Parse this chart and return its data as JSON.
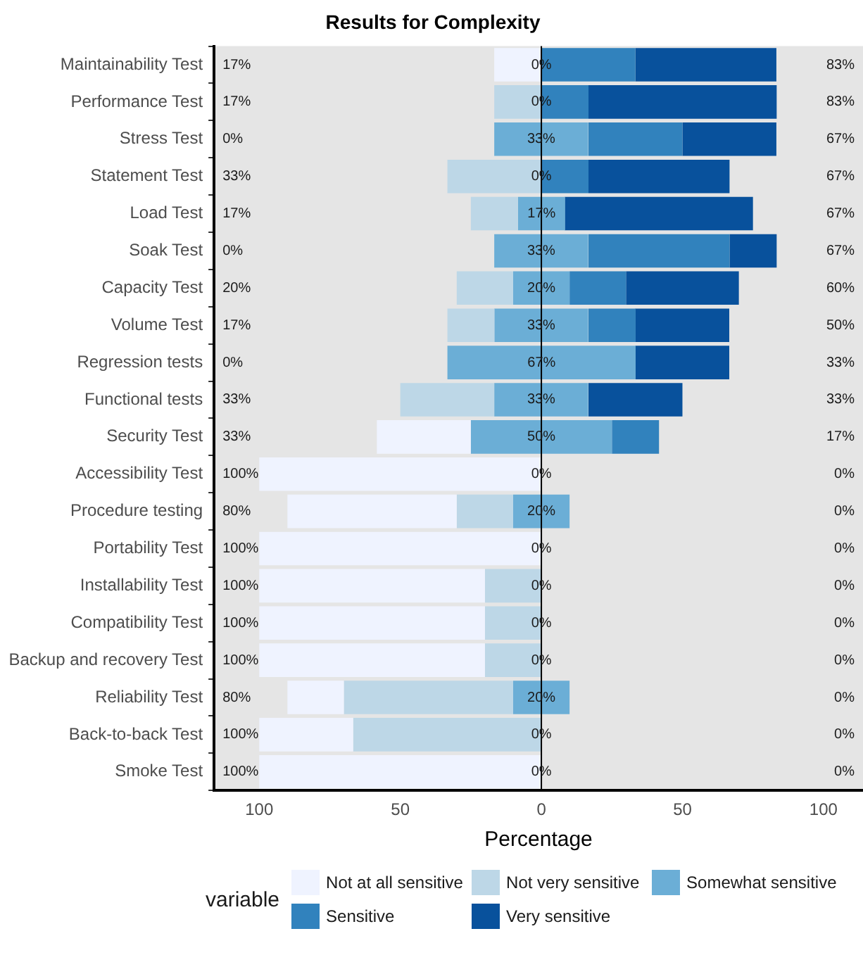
{
  "chart_data": {
    "type": "bar",
    "title": "Results for Complexity",
    "xlabel": "Percentage",
    "legend_title": "variable",
    "orientation": "horizontal",
    "legend": "bottom",
    "grid": false,
    "categories": [
      "Maintainability Test",
      "Performance Test",
      "Stress Test",
      "Statement Test",
      "Load Test",
      "Soak Test",
      "Capacity Test",
      "Volume Test",
      "Regression tests",
      "Functional tests",
      "Security Test",
      "Accessibility Test",
      "Procedure testing",
      "Portability Test",
      "Installability Test",
      "Compatibility Test",
      "Backup and recovery Test",
      "Reliability Test",
      "Back-to-back Test",
      "Smoke Test"
    ],
    "xlim": [
      -116,
      114
    ],
    "xticks": [
      {
        "value": -100,
        "label": "100"
      },
      {
        "value": -50,
        "label": "50"
      },
      0,
      50,
      100
    ],
    "ref_lines": [
      {
        "axis": "x",
        "value": 0,
        "color": "#000000"
      }
    ],
    "series": [
      {
        "name": "Not at all sensitive",
        "color": "#eff3ff",
        "values": [
          16.7,
          0,
          0,
          0,
          0,
          0,
          0,
          0,
          0,
          0,
          33.3,
          100,
          60,
          100,
          80,
          80,
          80,
          20,
          33.3,
          100
        ],
        "base": [
          -16.7,
          null,
          null,
          null,
          null,
          null,
          null,
          null,
          null,
          null,
          -58.3,
          -100,
          -90,
          -100,
          -100,
          -100,
          -100,
          -90,
          -100,
          -100
        ]
      },
      {
        "name": "Not very sensitive",
        "color": "#bdd7e7",
        "values": [
          0,
          16.7,
          0,
          33.3,
          16.7,
          0,
          20,
          16.7,
          0,
          33.3,
          0,
          0,
          20,
          0,
          20,
          20,
          20,
          60,
          66.7,
          0
        ],
        "base": [
          null,
          -16.7,
          null,
          -33.3,
          -25,
          null,
          -30,
          -33.3,
          null,
          -50,
          null,
          null,
          -30,
          null,
          -20,
          -20,
          -20,
          -70,
          -66.7,
          null
        ]
      },
      {
        "name": "Somewhat sensitive",
        "color": "#6baed6",
        "values": [
          0,
          0,
          33.3,
          0,
          16.7,
          33.3,
          20,
          33.3,
          66.7,
          33.3,
          50,
          0,
          20,
          0,
          0,
          0,
          0,
          20,
          0,
          0
        ],
        "base": [
          null,
          null,
          -16.7,
          null,
          -8.3,
          -16.7,
          -10,
          -16.7,
          -33.3,
          -16.7,
          -25,
          null,
          -10,
          null,
          null,
          null,
          null,
          -10,
          null,
          null
        ],
        "value_labels": [
          "0%",
          "0%",
          "33%",
          "0%",
          "17%",
          "33%",
          "20%",
          "33%",
          "67%",
          "33%",
          "50%",
          "0%",
          "20%",
          "0%",
          "0%",
          "0%",
          "0%",
          "20%",
          "0%",
          "0%"
        ]
      },
      {
        "name": "Sensitive",
        "color": "#3182bd",
        "values": [
          33.3,
          16.7,
          33.3,
          16.7,
          0,
          50,
          20,
          16.7,
          0,
          0,
          16.7,
          0,
          0,
          0,
          0,
          0,
          0,
          0,
          0,
          0
        ],
        "base": [
          0,
          0,
          16.7,
          0,
          null,
          16.7,
          10,
          16.7,
          null,
          null,
          25,
          null,
          null,
          null,
          null,
          null,
          null,
          null,
          null,
          null
        ]
      },
      {
        "name": "Very sensitive",
        "color": "#08519c",
        "values": [
          50,
          66.7,
          33.3,
          50,
          66.7,
          16.7,
          40,
          33.3,
          33.3,
          33.3,
          0,
          0,
          0,
          0,
          0,
          0,
          0,
          0,
          0,
          0
        ],
        "base": [
          33.3,
          16.7,
          50,
          16.7,
          8.3,
          66.7,
          30,
          33.3,
          33.3,
          16.7,
          null,
          null,
          null,
          null,
          null,
          null,
          null,
          null,
          null,
          null
        ]
      }
    ],
    "annotations": [
      "17%",
      "17%",
      "0%",
      "33%",
      "17%",
      "0%",
      "20%",
      "17%",
      "0%",
      "33%",
      "33%",
      "100%",
      "80%",
      "100%",
      "100%",
      "100%",
      "100%",
      "80%",
      "100%",
      "100%",
      "83%",
      "83%",
      "67%",
      "67%",
      "67%",
      "67%",
      "60%",
      "50%",
      "33%",
      "33%",
      "17%",
      "0%",
      "0%",
      "0%",
      "0%",
      "0%",
      "0%",
      "0%",
      "0%",
      "0%"
    ]
  }
}
